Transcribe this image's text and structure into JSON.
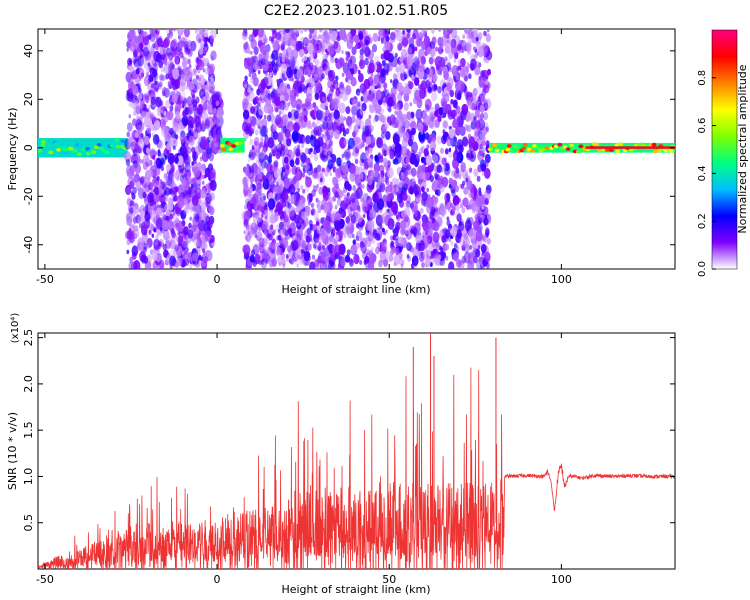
{
  "title": "C2E2.2023.101.02.51.R05",
  "chart_data": [
    {
      "type": "heatmap",
      "xlabel": "Height of straight line (km)",
      "ylabel": "Frequency (Hz)",
      "xlim": [
        -52,
        133
      ],
      "ylim": [
        -50,
        49
      ],
      "xticks": [
        -50,
        0,
        50,
        100
      ],
      "yticks": [
        -40,
        -20,
        0,
        20,
        40
      ],
      "colorbar": {
        "label": "Normalized spectral amplitude",
        "range": [
          0,
          1
        ],
        "ticks": [
          "0.0",
          "0.2",
          "0.4",
          "0.6",
          "0.8"
        ],
        "tick_values": [
          0.0,
          0.2,
          0.4,
          0.6,
          0.8
        ],
        "colormap": [
          "#ffffff",
          "#7f00ff",
          "#0000ff",
          "#00c0ff",
          "#00ff80",
          "#80ff00",
          "#ffff00",
          "#ff8000",
          "#ff0000",
          "#ff0080"
        ]
      },
      "regions": [
        {
          "x": [
            -52,
            -26
          ],
          "center_hz": 0,
          "spread_hz": 4,
          "level": "medium-high",
          "kind": "band"
        },
        {
          "x": [
            -26,
            -1
          ],
          "center_hz": 0,
          "spread_hz": 49,
          "level": "low-medium",
          "kind": "scatter"
        },
        {
          "x": [
            -1,
            1
          ],
          "center_hz": 10,
          "spread_hz": 12,
          "level": "medium",
          "kind": "scatter"
        },
        {
          "x": [
            1,
            8
          ],
          "center_hz": 1,
          "spread_hz": 3,
          "level": "high",
          "kind": "band"
        },
        {
          "x": [
            8,
            34
          ],
          "center_hz": 0,
          "spread_hz": 49,
          "level": "low-medium",
          "kind": "scatter"
        },
        {
          "x": [
            34,
            79
          ],
          "center_hz": 0,
          "spread_hz": 49,
          "level": "low-medium",
          "kind": "scatter"
        },
        {
          "x": [
            79,
            133
          ],
          "center_hz": 0,
          "spread_hz": 2,
          "level": "high",
          "kind": "band"
        }
      ]
    },
    {
      "type": "line",
      "xlabel": "Height of straight line (km)",
      "ylabel": "SNR (10 * v/v)",
      "y_multiplier": "(x10⁴)",
      "xlim": [
        -52,
        133
      ],
      "ylim": [
        0,
        2.55
      ],
      "xticks": [
        -50,
        0,
        50,
        100
      ],
      "yticks": [
        "0.5",
        "1.0",
        "1.5",
        "2.0",
        "2.5"
      ],
      "ytick_values": [
        0.5,
        1.0,
        1.5,
        2.0,
        2.5
      ],
      "color": "#ee3333",
      "series": [
        {
          "x": [
            -52,
            -45,
            -40,
            -35,
            -30,
            -25,
            -20,
            -15,
            -10,
            -5,
            0,
            5,
            8,
            10,
            15,
            20,
            25,
            30,
            35,
            40,
            45,
            50,
            55,
            60,
            65,
            70,
            75,
            80,
            83,
            83.5,
            90,
            95,
            96,
            97,
            98,
            99,
            100,
            101,
            102,
            104,
            106,
            108,
            110,
            115,
            120,
            125,
            133
          ],
          "y": [
            0.02,
            0.08,
            0.2,
            0.3,
            0.38,
            0.42,
            0.48,
            0.45,
            0.5,
            0.52,
            0.48,
            0.55,
            0.6,
            0.6,
            0.65,
            0.7,
            0.8,
            0.85,
            0.88,
            0.86,
            0.9,
            0.92,
            0.88,
            0.9,
            0.9,
            0.88,
            0.9,
            0.85,
            0.9,
            1.0,
            1.01,
            1.0,
            1.05,
            0.95,
            0.62,
            1.0,
            1.12,
            0.88,
            1.0,
            1.0,
            0.98,
            1.0,
            1.01,
            1.0,
            1.01,
            1.0,
            1.0
          ],
          "noise_amplitude": [
            0.02,
            0.08,
            0.3,
            0.4,
            0.55,
            0.5,
            0.7,
            0.8,
            0.9,
            0.8,
            0.7,
            0.4,
            0.6,
            0.8,
            0.9,
            1.0,
            1.2,
            1.2,
            1.3,
            1.3,
            1.4,
            1.4,
            1.3,
            1.4,
            1.4,
            1.3,
            1.4,
            1.2,
            1.3,
            0.02,
            0.02,
            0.02,
            0.04,
            0.02,
            0.02,
            0.06,
            0.05,
            0.04,
            0.02,
            0.02,
            0.02,
            0.02,
            0.02,
            0.02,
            0.02,
            0.02,
            0.02
          ]
        }
      ],
      "peaks": [
        {
          "x": 62,
          "y": 2.55
        },
        {
          "x": 81,
          "y": 2.5
        },
        {
          "x": 57,
          "y": 2.4
        },
        {
          "x": 63,
          "y": 2.3
        }
      ]
    }
  ]
}
